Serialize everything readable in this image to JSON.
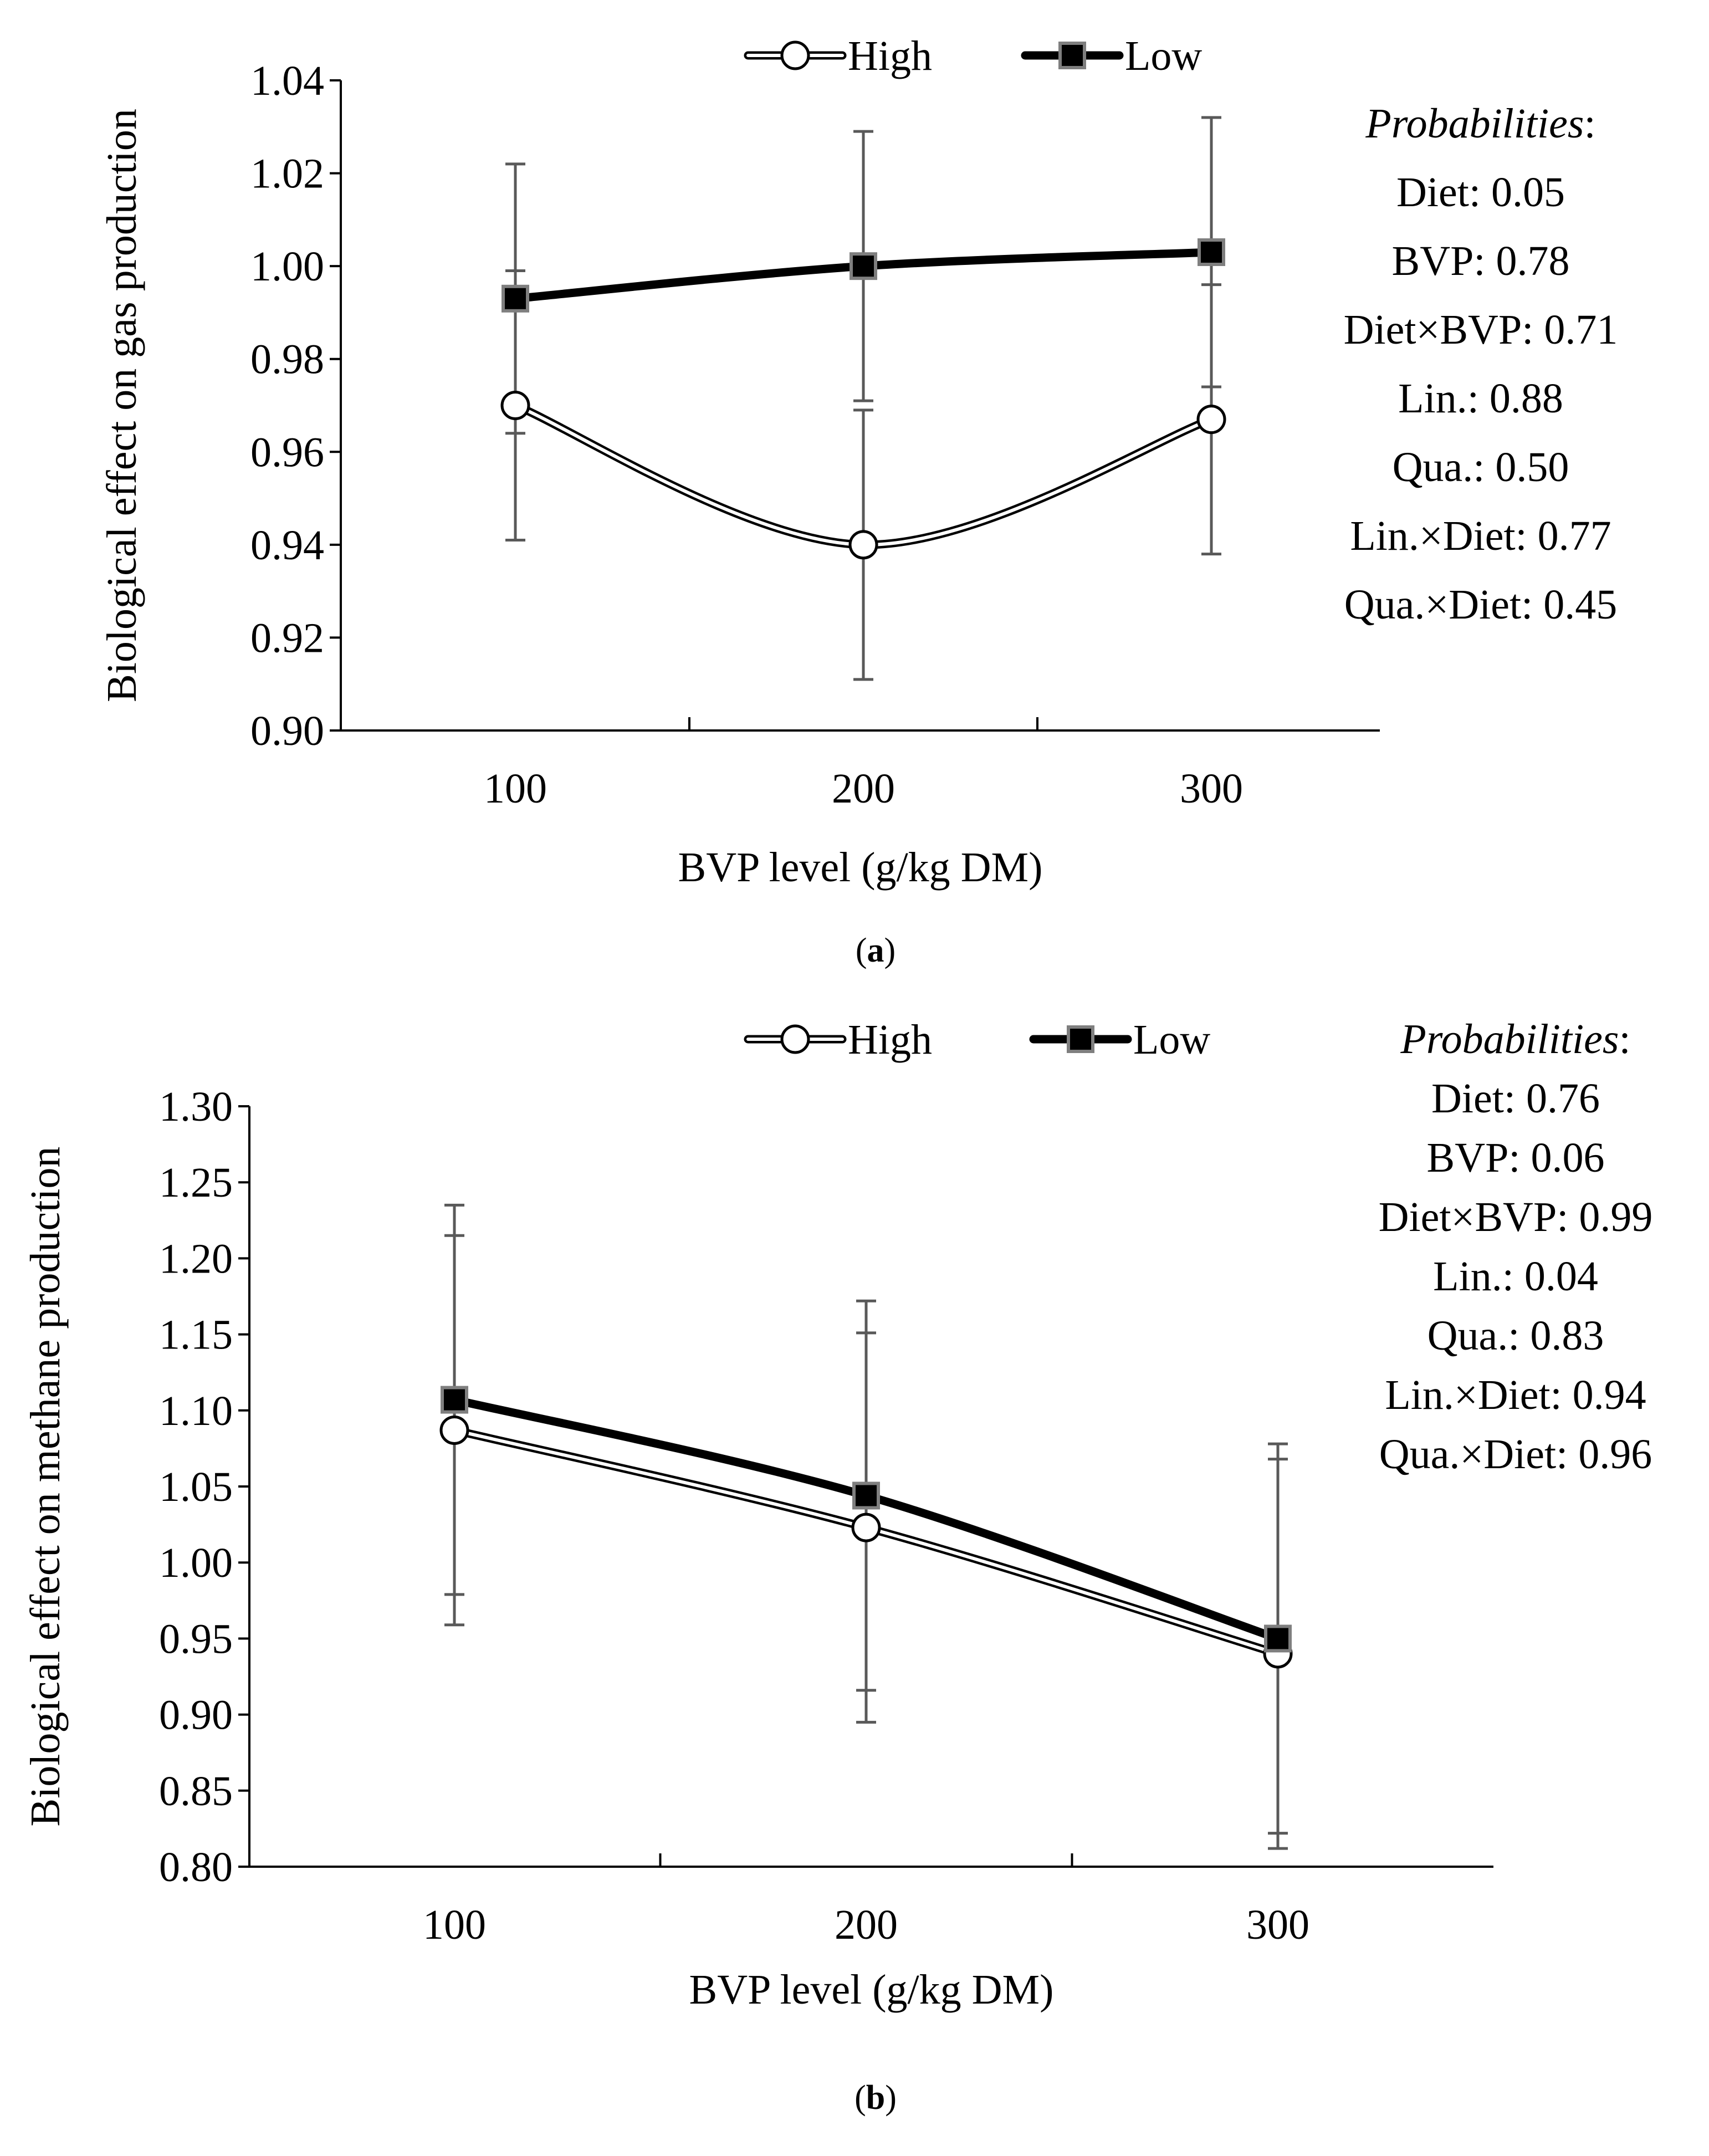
{
  "chart_data": [
    {
      "type": "line",
      "panel_label": "a",
      "xlabel": "BVP level (g/kg DM)",
      "ylabel": "Biological effect on gas production",
      "categories": [
        "100",
        "200",
        "300"
      ],
      "x": [
        100,
        200,
        300
      ],
      "ylim": [
        0.9,
        1.04
      ],
      "yticks": [
        "0.90",
        "0.92",
        "0.94",
        "0.96",
        "0.98",
        "1.00",
        "1.02",
        "1.04"
      ],
      "legend_position": "top-center",
      "grid": false,
      "series": [
        {
          "name": "High",
          "marker": "open-circle",
          "line_style": "double",
          "values": [
            0.97,
            0.94,
            0.967
          ],
          "errors": [
            0.029,
            0.029,
            0.029
          ]
        },
        {
          "name": "Low",
          "marker": "filled-square",
          "line_style": "bold",
          "values": [
            0.993,
            1.0,
            1.003
          ],
          "errors": [
            0.029,
            0.029,
            0.029
          ]
        }
      ],
      "probabilities": {
        "title": "Probabilities",
        "lines": [
          "Diet: 0.05",
          "BVP: 0.78",
          "Diet×BVP: 0.71",
          "Lin.: 0.88",
          "Qua.: 0.50",
          "Lin.×Diet: 0.77",
          "Qua.×Diet: 0.45"
        ]
      }
    },
    {
      "type": "line",
      "panel_label": "b",
      "xlabel": "BVP level (g/kg DM)",
      "ylabel": "Biological effect on methane production",
      "categories": [
        "100",
        "200",
        "300"
      ],
      "x": [
        100,
        200,
        300
      ],
      "ylim": [
        0.8,
        1.3
      ],
      "yticks": [
        "0.80",
        "0.85",
        "0.90",
        "0.95",
        "1.00",
        "1.05",
        "1.10",
        "1.15",
        "1.20",
        "1.25",
        "1.30"
      ],
      "legend_position": "top-center",
      "grid": false,
      "series": [
        {
          "name": "High",
          "marker": "open-circle",
          "line_style": "double",
          "values": [
            1.087,
            1.023,
            0.94
          ],
          "errors": [
            0.128,
            0.128,
            0.128
          ]
        },
        {
          "name": "Low",
          "marker": "filled-square",
          "line_style": "bold",
          "values": [
            1.107,
            1.044,
            0.95
          ],
          "errors": [
            0.128,
            0.128,
            0.128
          ]
        }
      ],
      "probabilities": {
        "title": "Probabilities",
        "lines": [
          "Diet: 0.76",
          "BVP: 0.06",
          "Diet×BVP: 0.99",
          "Lin.: 0.04",
          "Qua.: 0.83",
          "Lin.×Diet: 0.94",
          "Qua.×Diet: 0.96"
        ]
      }
    }
  ]
}
